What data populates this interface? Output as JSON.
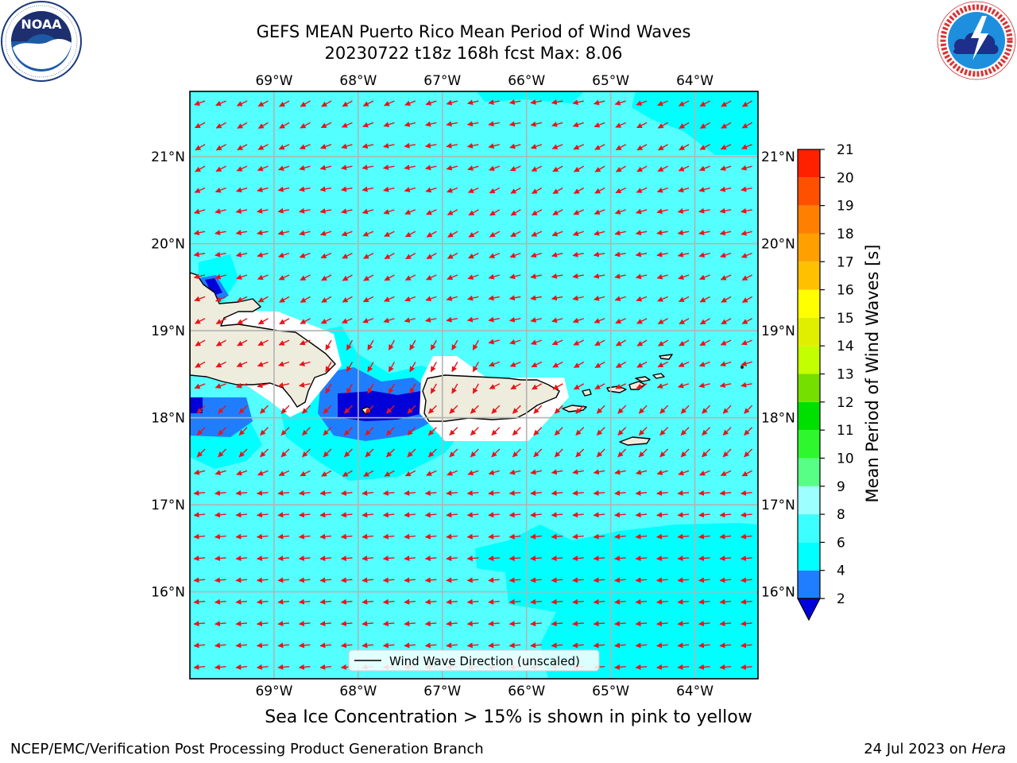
{
  "title": {
    "line1": "GEFS MEAN Puerto Rico Mean Period of Wind Waves",
    "line2": "20230722 t18z 168h fcst   Max: 8.06"
  },
  "logos": {
    "noaa_text": "NOAA",
    "noaa_ring": "NATIONAL OCEANIC AND ATMOSPHERIC ADMINISTRATION · U.S. DEPARTMENT OF COMMERCE",
    "nws_ring": "NATIONAL WEATHER SERVICE"
  },
  "map": {
    "lon_labels": [
      "69°W",
      "68°W",
      "67°W",
      "66°W",
      "65°W",
      "64°W"
    ],
    "lat_labels": [
      "21°N",
      "20°N",
      "19°N",
      "18°N",
      "17°N",
      "16°N"
    ],
    "lon_range": [
      -70.0,
      -63.25
    ],
    "lat_range": [
      15.0,
      21.75
    ],
    "land_color": "#eeecdc",
    "arrow_color": "#e8141b",
    "grid": true,
    "legend_label": "Wind Wave Direction (unscaled)",
    "regions": [
      {
        "name": "Hispaniola"
      },
      {
        "name": "Puerto Rico"
      },
      {
        "name": "Virgin Islands"
      }
    ]
  },
  "colorbar": {
    "label": "Mean Period of Wind Waves [s]",
    "ticks": [
      2,
      4,
      6,
      8,
      9,
      10,
      11,
      12,
      13,
      14,
      15,
      16,
      17,
      18,
      19,
      20,
      21
    ],
    "colors": [
      "#0000ff",
      "#1f7eff",
      "#00ffff",
      "#3dffff",
      "#9dffff",
      "#58ff86",
      "#2ef72e",
      "#00e000",
      "#75e000",
      "#c4ff00",
      "#e0ef00",
      "#ffff00",
      "#ffc000",
      "#ffa000",
      "#ff8000",
      "#ff5000",
      "#ff2000",
      "#ff0000"
    ],
    "under_color": "#0000dd"
  },
  "field_colors": {
    "base": "#53ffff",
    "period_4_6": "#00ffff",
    "period_2_4": "#1f7eff",
    "period_under_2": "#0000d8"
  },
  "notes": {
    "sea_ice": "Sea Ice Concentration > 15% is shown in pink to yellow"
  },
  "footer": {
    "left": "NCEP/EMC/Verification Post Processing Product Generation Branch",
    "date": "24 Jul 2023 on",
    "machine": "Hera"
  }
}
